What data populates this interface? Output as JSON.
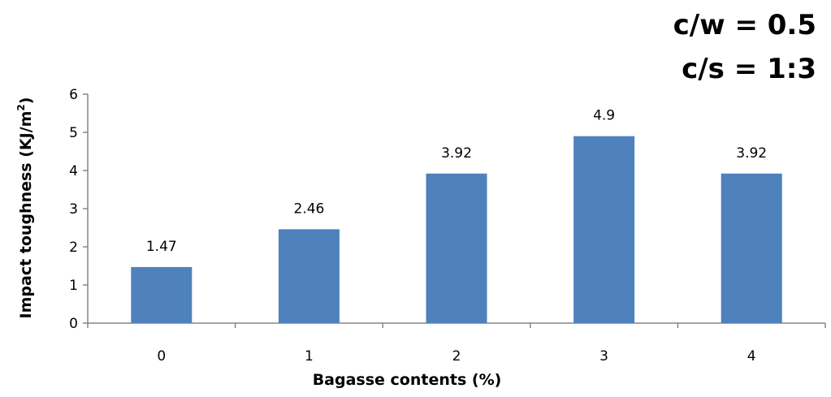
{
  "chart_data": {
    "type": "bar",
    "categories": [
      "0",
      "1",
      "2",
      "3",
      "4"
    ],
    "values": [
      1.47,
      2.46,
      3.92,
      4.9,
      3.92
    ],
    "data_labels": [
      "1.47",
      "2.46",
      "3.92",
      "4.9",
      "3.92"
    ],
    "xlabel": "Bagasse contents (%)",
    "ylabel": "Impact toughness (KJ/m",
    "ylabel_superscript": "2",
    "ylabel_suffix": ")",
    "ylim": [
      0,
      6
    ],
    "yticks": [
      "0",
      "1",
      "2",
      "3",
      "4",
      "5",
      "6"
    ],
    "annotations": [
      "c/w = 0.5",
      "c/s = 1:3"
    ],
    "bar_color": "#4f81bd",
    "grid": false,
    "legend": "none"
  }
}
